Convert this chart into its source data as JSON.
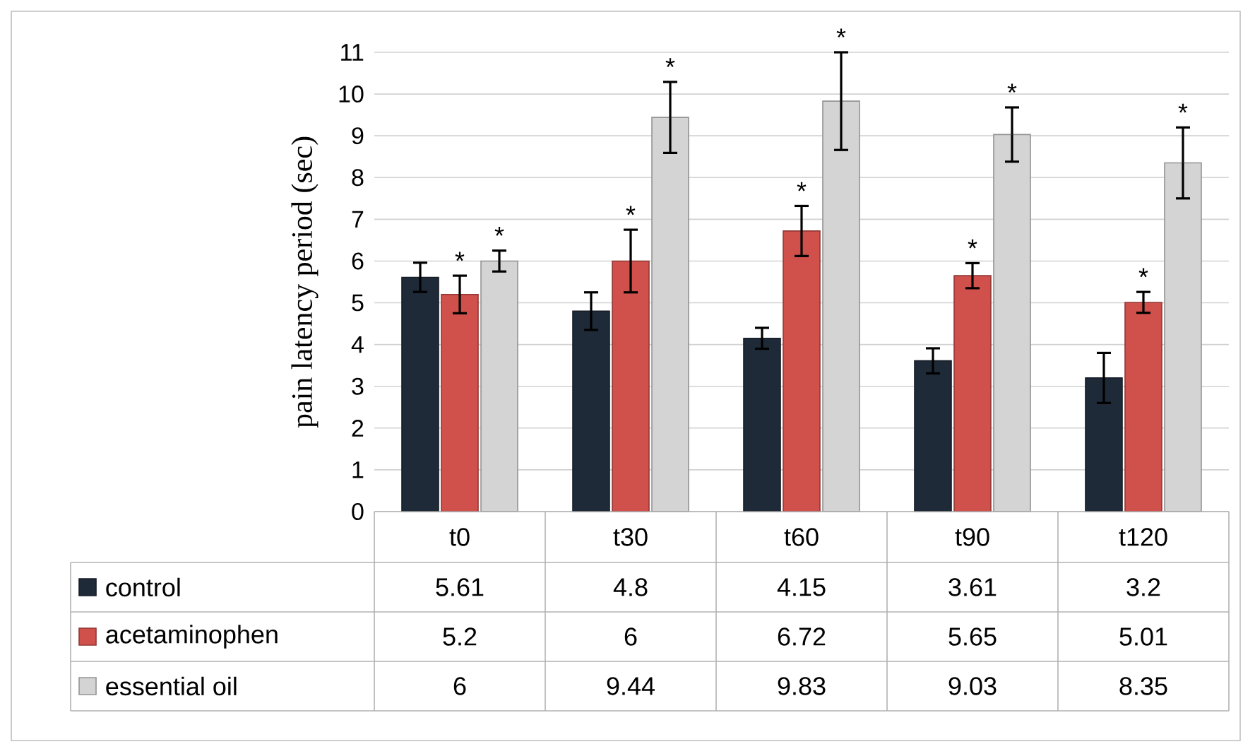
{
  "chart_data": {
    "type": "bar",
    "ylabel": "pain latency period (sec)",
    "categories": [
      "t0",
      "t30",
      "t60",
      "t90",
      "t120"
    ],
    "series": [
      {
        "name": "control",
        "color": "#1f2a38",
        "values": [
          5.61,
          4.8,
          4.15,
          3.61,
          3.2
        ],
        "errors": [
          0.35,
          0.45,
          0.25,
          0.3,
          0.6
        ]
      },
      {
        "name": "acetaminophen",
        "color": "#d0504c",
        "values": [
          5.2,
          6,
          6.72,
          5.65,
          5.01
        ],
        "errors": [
          0.45,
          0.75,
          0.6,
          0.3,
          0.25
        ]
      },
      {
        "name": "essential oil",
        "color": "#d4d4d4",
        "values": [
          6,
          9.44,
          9.83,
          9.03,
          8.35
        ],
        "errors": [
          0.25,
          0.85,
          1.17,
          0.65,
          0.85
        ]
      }
    ],
    "annotations": [
      {
        "text": "*",
        "x": "t0",
        "y": 5.2
      },
      {
        "text": "*",
        "x": "t30",
        "y": 6
      },
      {
        "text": "*",
        "x": "t60",
        "y": 6.72
      },
      {
        "text": "*",
        "x": "t90",
        "y": 5.65
      },
      {
        "text": "*",
        "x": "t120",
        "y": 5.01
      },
      "*",
      "*",
      "*",
      "*",
      "*"
    ],
    "ylim": [
      0,
      11
    ],
    "yticks": [
      0,
      1,
      2,
      3,
      4,
      5,
      6,
      7,
      8,
      9,
      10,
      11
    ],
    "grid": "y",
    "data_labels": true,
    "legend": "bottom left"
  }
}
